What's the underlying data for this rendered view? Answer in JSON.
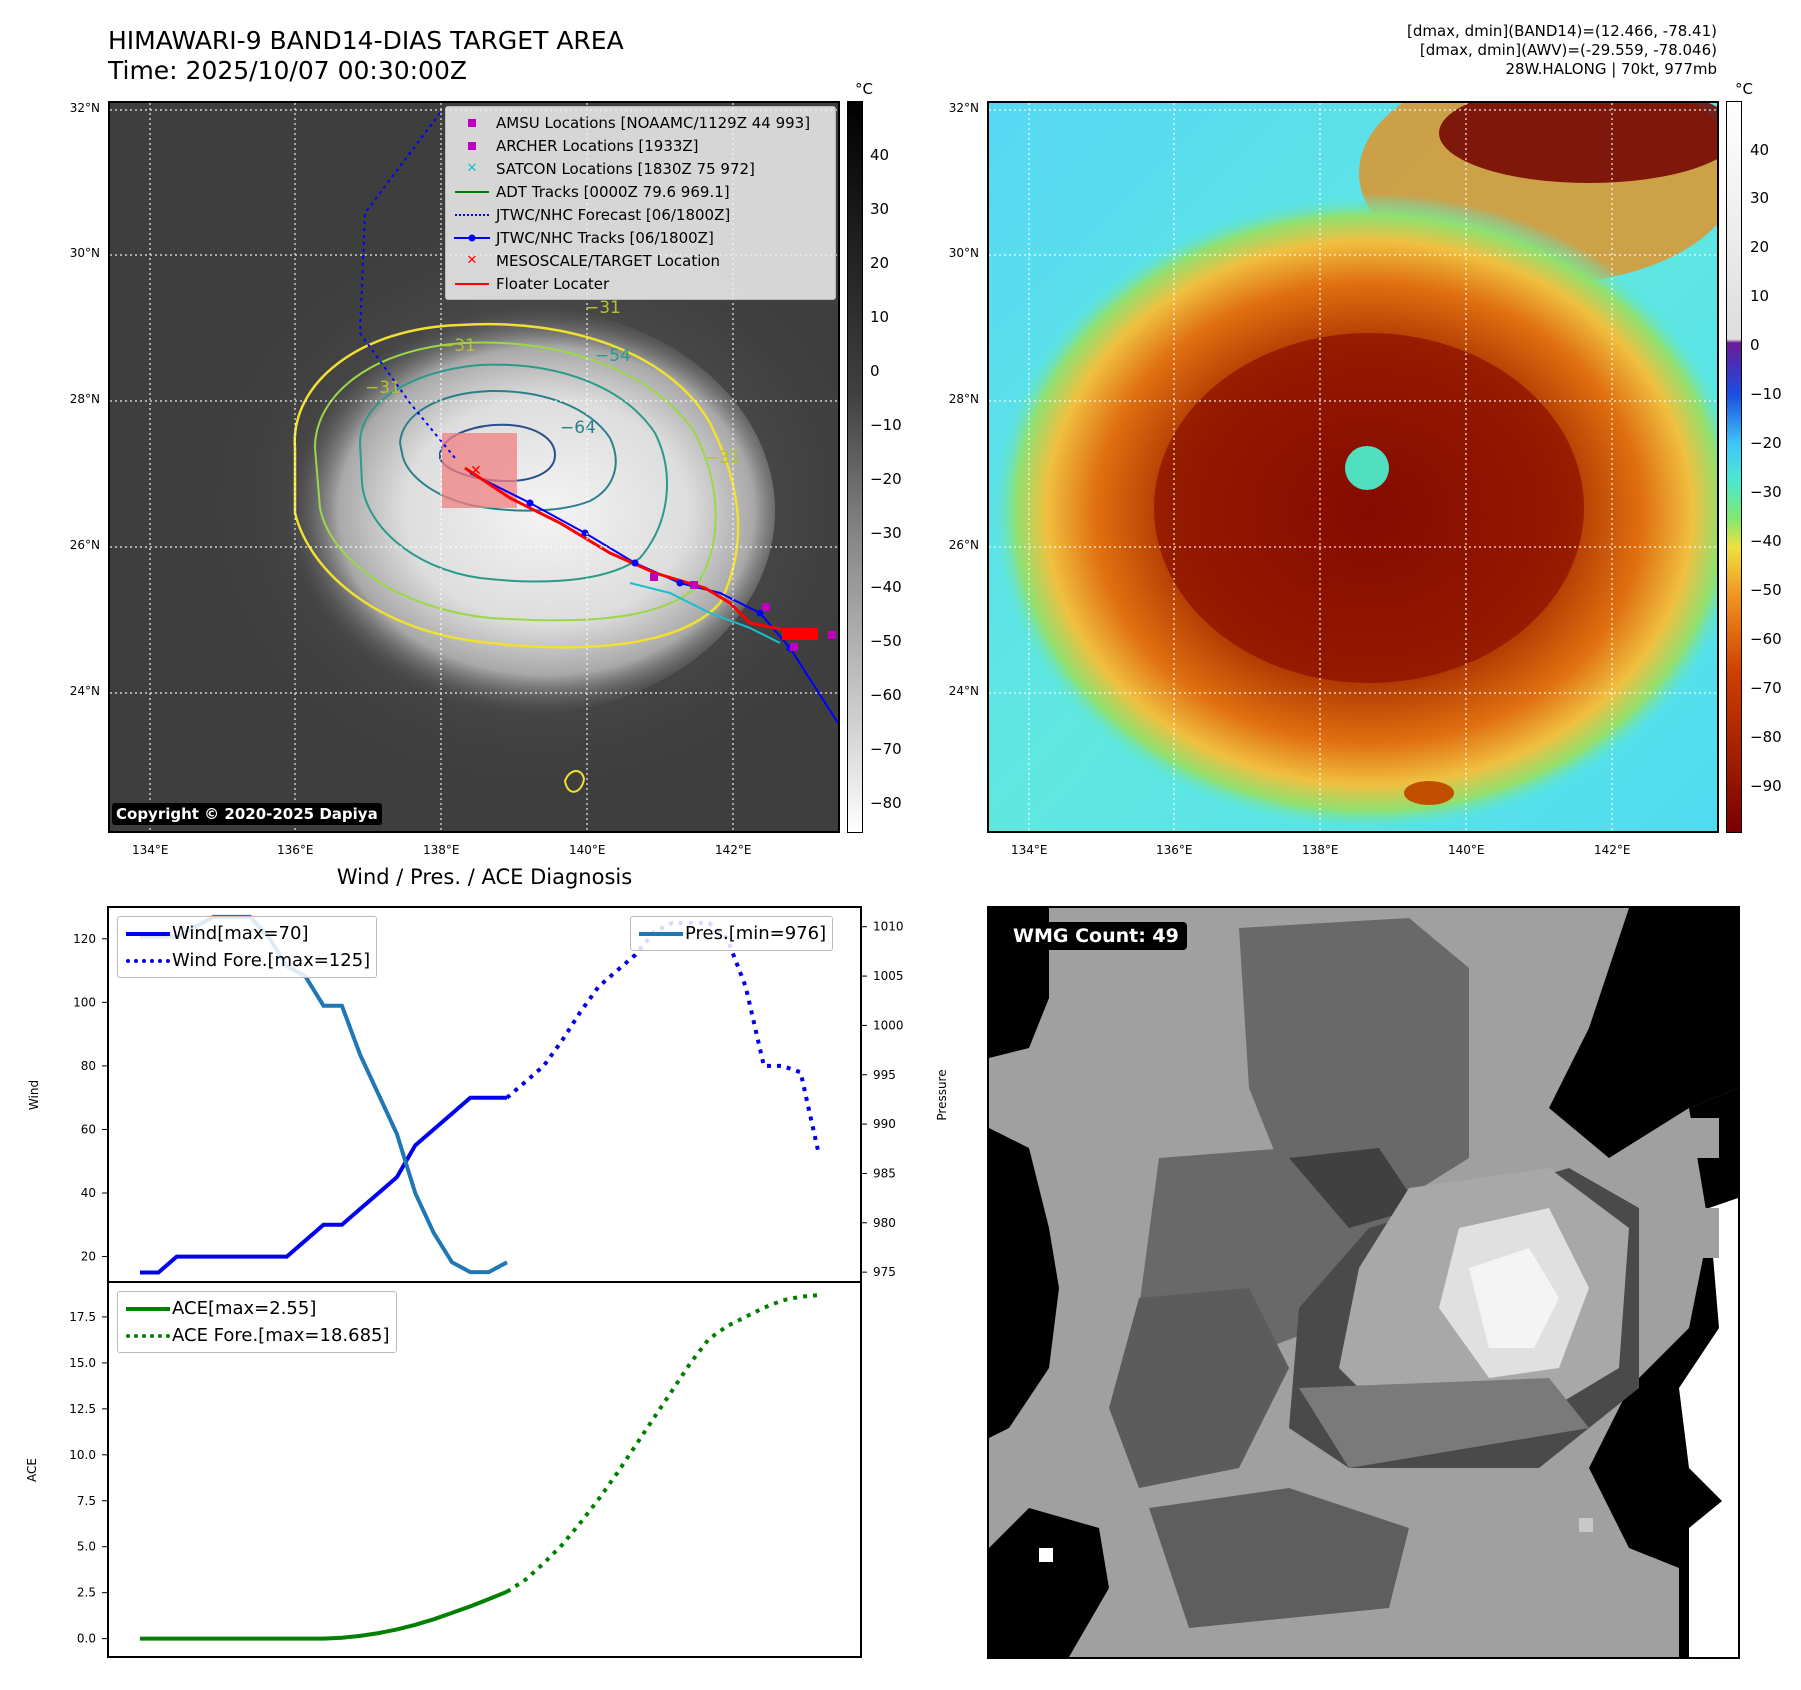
{
  "header": {
    "title_line1": "HIMAWARI-9 BAND14-DIAS TARGET AREA",
    "title_line2": "Time: 2025/10/07 00:30:00Z",
    "info_line1": "[dmax, dmin](BAND14)=(12.466, -78.41)",
    "info_line2": "[dmax, dmin](AWV)=(-29.559, -78.046)",
    "info_line3": "28W.HALONG | 70kt, 977mb"
  },
  "map": {
    "lat_labels": [
      "32°N",
      "30°N",
      "28°N",
      "26°N",
      "24°N"
    ],
    "lon_labels": [
      "134°E",
      "136°E",
      "138°E",
      "140°E",
      "142°E"
    ],
    "unit": "°C",
    "ir_colorbar_ticks": [
      "40",
      "30",
      "20",
      "10",
      "0",
      "−10",
      "−20",
      "−30",
      "−40",
      "−50",
      "−60",
      "−70",
      "−80"
    ],
    "awv_colorbar_ticks": [
      "40",
      "30",
      "20",
      "10",
      "0",
      "−10",
      "−20",
      "−30",
      "−40",
      "−50",
      "−60",
      "−70",
      "−80",
      "−90"
    ],
    "contour_labels": [
      "−64",
      "−54",
      "−31",
      "−31",
      "−31",
      "−31"
    ],
    "copyright": "Copyright © 2020-2025 Dapiya",
    "legend": [
      {
        "label": "AMSU Locations [NOAAMC/1129Z 44 993]",
        "color": "#bf00bf",
        "key": "square"
      },
      {
        "label": "ARCHER Locations [1933Z]",
        "color": "#bf00bf",
        "key": "square"
      },
      {
        "label": "SATCON Locations [1830Z 75 972]",
        "color": "#17becf",
        "key": "x"
      },
      {
        "label": "ADT Tracks [0000Z 79.6 969.1]",
        "color": "#008000",
        "key": "line"
      },
      {
        "label": "JTWC/NHC Forecast [06/1800Z]",
        "color": "#0000ff",
        "key": "dotted"
      },
      {
        "label": "JTWC/NHC Tracks [06/1800Z]",
        "color": "#0000ff",
        "key": "line-dot"
      },
      {
        "label": "MESOSCALE/TARGET Location",
        "color": "#ff0000",
        "key": "x"
      },
      {
        "label": "Floater Locater",
        "color": "#ff0000",
        "key": "line"
      }
    ]
  },
  "diagnosis": {
    "title": "Wind / Pres. / ACE Diagnosis",
    "wind_ylabel": "Wind",
    "pressure_ylabel": "Pressure",
    "ace_ylabel": "ACE",
    "wind_legend": "Wind[max=70]",
    "wind_fore_legend": "Wind Fore.[max=125]",
    "pres_legend": "Pres.[min=976]",
    "ace_legend": "ACE[max=2.55]",
    "ace_fore_legend": "ACE Fore.[max=18.685]"
  },
  "wmg": {
    "label": "WMG Count: 49"
  },
  "colors": {
    "wind": "#0000ee",
    "pressure": "#1f77b4",
    "ace": "#008000"
  },
  "chart_data": [
    {
      "type": "line",
      "x": [
        0,
        1,
        2,
        3,
        4,
        5,
        6,
        7,
        8,
        9,
        10,
        11,
        12,
        13,
        14,
        15,
        16,
        17,
        18,
        19,
        20,
        21,
        22,
        23,
        24,
        25,
        26,
        27,
        28,
        29,
        30,
        31,
        32,
        33,
        34,
        35,
        36,
        37
      ],
      "ylim": [
        12,
        130
      ],
      "yticks": [
        20,
        40,
        60,
        80,
        100,
        120
      ],
      "series": [
        {
          "name": "Wind[max=70]",
          "x": [
            0,
            1,
            2,
            3,
            4,
            5,
            6,
            7,
            8,
            9,
            10,
            11,
            12,
            13,
            14,
            15,
            16,
            17,
            18,
            19,
            20
          ],
          "values": [
            15,
            15,
            20,
            20,
            20,
            20,
            20,
            20,
            20,
            25,
            30,
            30,
            35,
            40,
            45,
            55,
            60,
            65,
            70,
            70,
            70
          ]
        },
        {
          "name": "Wind Fore.[max=125]",
          "x": [
            20,
            21,
            22,
            23,
            24,
            25,
            26,
            27,
            28,
            29,
            30,
            31,
            32,
            33,
            34,
            35,
            36,
            37
          ],
          "values": [
            70,
            75,
            80,
            88,
            97,
            105,
            110,
            115,
            122,
            125,
            125,
            125,
            120,
            105,
            80,
            80,
            78,
            52
          ]
        }
      ]
    },
    {
      "type": "line",
      "ylim": [
        974,
        1012
      ],
      "yticks": [
        975,
        980,
        985,
        990,
        995,
        1000,
        1005,
        1010
      ],
      "series": [
        {
          "name": "Pres.[min=976]",
          "x": [
            0,
            1,
            2,
            3,
            4,
            5,
            6,
            7,
            8,
            9,
            10,
            11,
            12,
            13,
            14,
            15,
            16,
            17,
            18,
            19,
            20
          ],
          "values": [
            1009,
            1009,
            1009,
            1010,
            1011,
            1011,
            1011,
            1009,
            1006,
            1005,
            1002,
            1002,
            997,
            993,
            989,
            983,
            979,
            976,
            975,
            975,
            976
          ]
        }
      ]
    },
    {
      "type": "line",
      "ylim": [
        -1.0,
        19.4
      ],
      "yticks": [
        0.0,
        2.5,
        5.0,
        7.5,
        10.0,
        12.5,
        15.0,
        17.5
      ],
      "series": [
        {
          "name": "ACE[max=2.55]",
          "x": [
            0,
            1,
            2,
            3,
            4,
            5,
            6,
            7,
            8,
            9,
            10,
            11,
            12,
            13,
            14,
            15,
            16,
            17,
            18,
            19,
            20
          ],
          "values": [
            0,
            0,
            0,
            0,
            0,
            0,
            0,
            0,
            0,
            0,
            0,
            0.05,
            0.15,
            0.3,
            0.5,
            0.75,
            1.05,
            1.4,
            1.75,
            2.15,
            2.55
          ]
        },
        {
          "name": "ACE Fore.[max=18.685]",
          "x": [
            20,
            21,
            22,
            23,
            24,
            25,
            26,
            27,
            28,
            29,
            30,
            31,
            32,
            33,
            34,
            35,
            36,
            37
          ],
          "values": [
            2.55,
            3.2,
            4.1,
            5.1,
            6.3,
            7.6,
            9.0,
            10.5,
            12.0,
            13.5,
            15.0,
            16.3,
            17.0,
            17.5,
            18.0,
            18.4,
            18.6,
            18.685
          ]
        }
      ]
    }
  ]
}
